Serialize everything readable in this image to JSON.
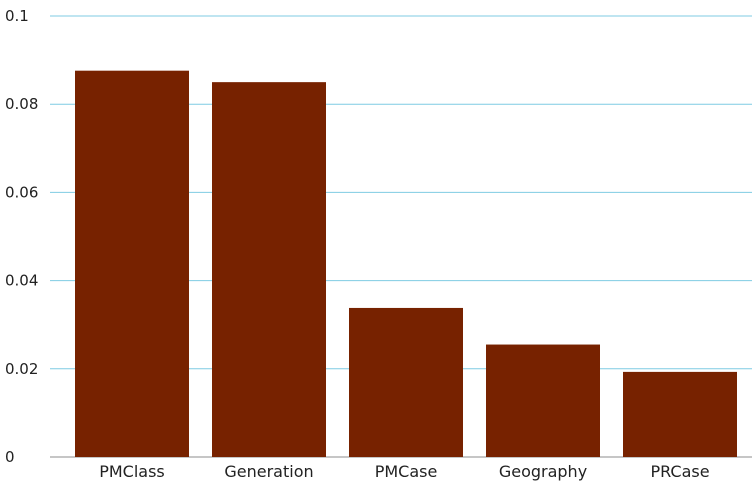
{
  "chart_data": {
    "type": "bar",
    "title": "",
    "xlabel": "",
    "ylabel": "",
    "categories": [
      "PMClass",
      "Generation",
      "PMCase",
      "Geography",
      "PRCase"
    ],
    "values": [
      0.0876,
      0.085,
      0.0338,
      0.0255,
      0.0193
    ],
    "ylim": [
      0,
      0.1
    ],
    "yticks": [
      0,
      0.02,
      0.04,
      0.06,
      0.08,
      0.1
    ],
    "ytick_labels": [
      "0",
      "0.02",
      "0.04",
      "0.06",
      "0.08",
      "0.1"
    ],
    "grid": true,
    "legend": "none",
    "colors": {
      "bar": "#772200",
      "grid": "#7fcbe3",
      "axis": "#8d8d8d",
      "text": "#222222"
    }
  }
}
